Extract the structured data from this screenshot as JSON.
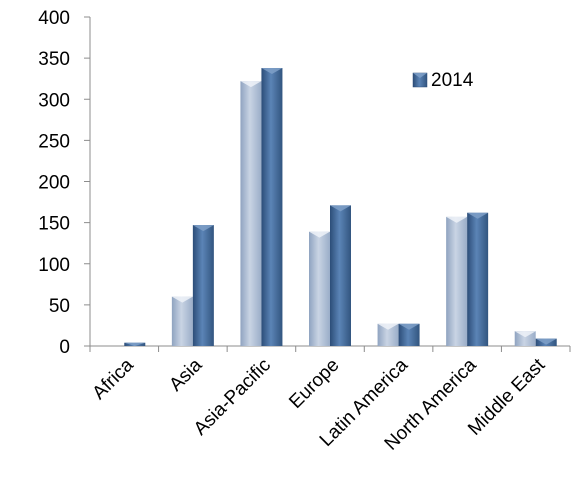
{
  "chart_data": {
    "type": "bar",
    "categories": [
      "Africa",
      "Asia",
      "Asia-Pacific",
      "Europe",
      "Latin America",
      "North America",
      "Middle East"
    ],
    "series": [
      {
        "values": [
          0,
          60,
          322,
          139,
          27,
          157,
          18
        ],
        "color": "#a8b8d0"
      },
      {
        "name": "2014",
        "values": [
          4,
          147,
          338,
          171,
          27,
          162,
          9
        ],
        "color": "#3e6391"
      }
    ],
    "ylim": [
      0,
      400
    ],
    "yticks": [
      0,
      50,
      100,
      150,
      200,
      250,
      300,
      350,
      400
    ],
    "legend": "top-right",
    "grid": false
  }
}
